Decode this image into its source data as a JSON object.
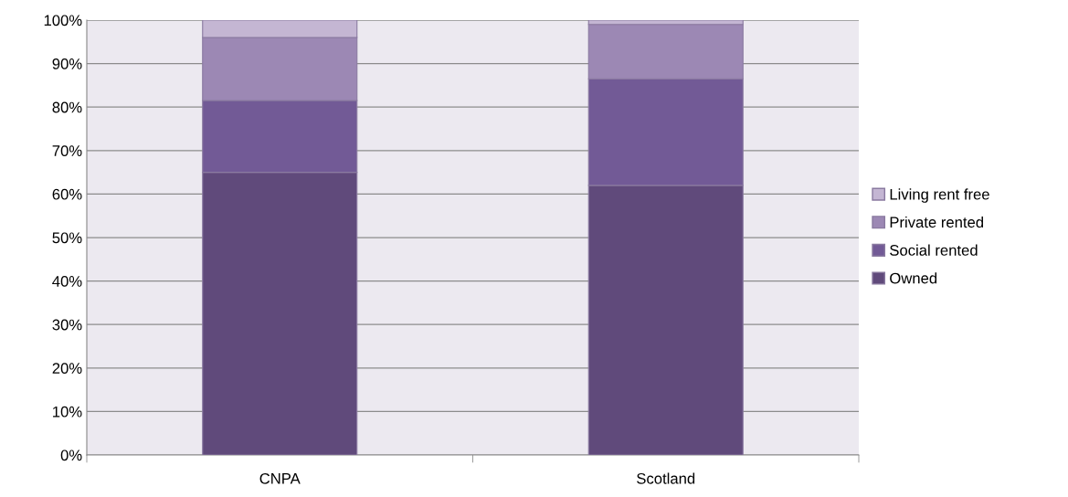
{
  "chart_data": {
    "type": "bar",
    "stacked": true,
    "categories": [
      "CNPA",
      "Scotland"
    ],
    "series": [
      {
        "name": "Owned",
        "color": "#604a7b",
        "values": [
          65,
          62
        ]
      },
      {
        "name": "Social rented",
        "color": "#725a96",
        "values": [
          16.5,
          24.5
        ]
      },
      {
        "name": "Private rented",
        "color": "#9c88b4",
        "values": [
          14.5,
          12.5
        ]
      },
      {
        "name": "Living rent free",
        "color": "#c4b6d3",
        "values": [
          4,
          1
        ]
      }
    ],
    "ylim": [
      0,
      100
    ],
    "yticks": [
      {
        "value": 0,
        "label": "0%"
      },
      {
        "value": 10,
        "label": "10%"
      },
      {
        "value": 20,
        "label": "20%"
      },
      {
        "value": 30,
        "label": "30%"
      },
      {
        "value": 40,
        "label": "40%"
      },
      {
        "value": 50,
        "label": "50%"
      },
      {
        "value": 60,
        "label": "60%"
      },
      {
        "value": 70,
        "label": "70%"
      },
      {
        "value": 80,
        "label": "80%"
      },
      {
        "value": 90,
        "label": "90%"
      },
      {
        "value": 100,
        "label": "100%"
      }
    ],
    "grid": "y",
    "legend": "right"
  }
}
